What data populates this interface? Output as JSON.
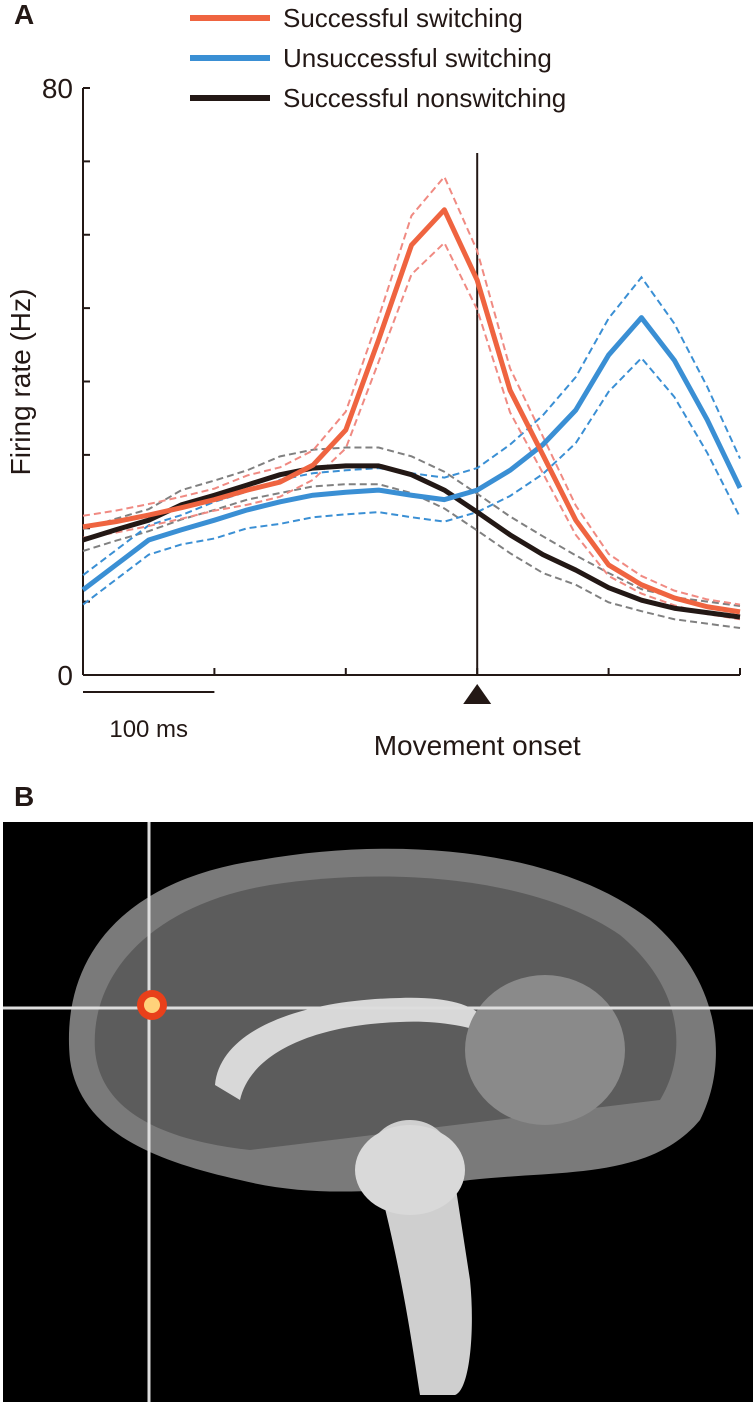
{
  "chart_data": {
    "type": "line",
    "panel_labels": [
      "A",
      "B"
    ],
    "y_label": "Firing rate (Hz)",
    "x": [
      -300,
      -275,
      -250,
      -225,
      -200,
      -175,
      -150,
      -125,
      -100,
      -75,
      -50,
      -25,
      0,
      25,
      50,
      75,
      100,
      125,
      150,
      175,
      200
    ],
    "xlim": [
      -300,
      200
    ],
    "xticks": [
      -300,
      -200,
      -100,
      0,
      100,
      200
    ],
    "ylim": [
      0,
      80
    ],
    "yticks": [
      0,
      80
    ],
    "yminorticks": [
      10,
      20,
      30,
      40,
      50,
      60,
      70
    ],
    "scale_bar": {
      "value": 100,
      "label": "100 ms"
    },
    "onset": {
      "x": 0,
      "label": "Movement onset"
    },
    "series": [
      {
        "name": "Successful switching",
        "color": "#ef6440",
        "band_color": "#f08a82",
        "values": [
          20.2,
          20.9,
          21.8,
          22.8,
          23.9,
          25.2,
          26.3,
          28.6,
          33.4,
          45.7,
          58.6,
          63.4,
          53.8,
          38.8,
          30.0,
          21.1,
          15.0,
          12.3,
          10.5,
          9.3,
          8.6
        ],
        "errors": [
          1.5,
          1.5,
          1.5,
          1.5,
          1.5,
          2,
          2,
          2,
          2.5,
          3,
          4,
          4.5,
          4,
          3,
          2.5,
          2,
          1.5,
          1.2,
          1,
          1,
          1
        ]
      },
      {
        "name": "Unsuccessful switching",
        "color": "#3a8fd4",
        "band_color": "#3a8fd4",
        "values": [
          11.6,
          15.0,
          18.4,
          19.8,
          21.1,
          22.5,
          23.6,
          24.5,
          24.9,
          25.2,
          24.5,
          23.9,
          25.2,
          27.9,
          31.4,
          36.1,
          43.6,
          48.7,
          42.9,
          34.8,
          25.5
        ],
        "errors": [
          2,
          2,
          2,
          2,
          2.5,
          2.5,
          3,
          3,
          3,
          3,
          3,
          3,
          3,
          3.5,
          4,
          4.5,
          5,
          5.5,
          5,
          4.5,
          4
        ]
      },
      {
        "name": "Successful nonswitching",
        "color": "#231815",
        "band_color": "#808080",
        "values": [
          18.4,
          19.8,
          21.1,
          23.2,
          24.5,
          25.9,
          27.3,
          28.2,
          28.5,
          28.5,
          27.3,
          25.2,
          22.2,
          19.1,
          16.4,
          14.3,
          11.9,
          10.2,
          9.1,
          8.5,
          7.9
        ],
        "errors": [
          1.5,
          1.5,
          1.5,
          2,
          2,
          2,
          2.5,
          2.5,
          2.5,
          2.5,
          2.5,
          2.5,
          2.5,
          2.5,
          2.5,
          2,
          2,
          1.5,
          1.5,
          1.5,
          1.5
        ]
      }
    ]
  }
}
